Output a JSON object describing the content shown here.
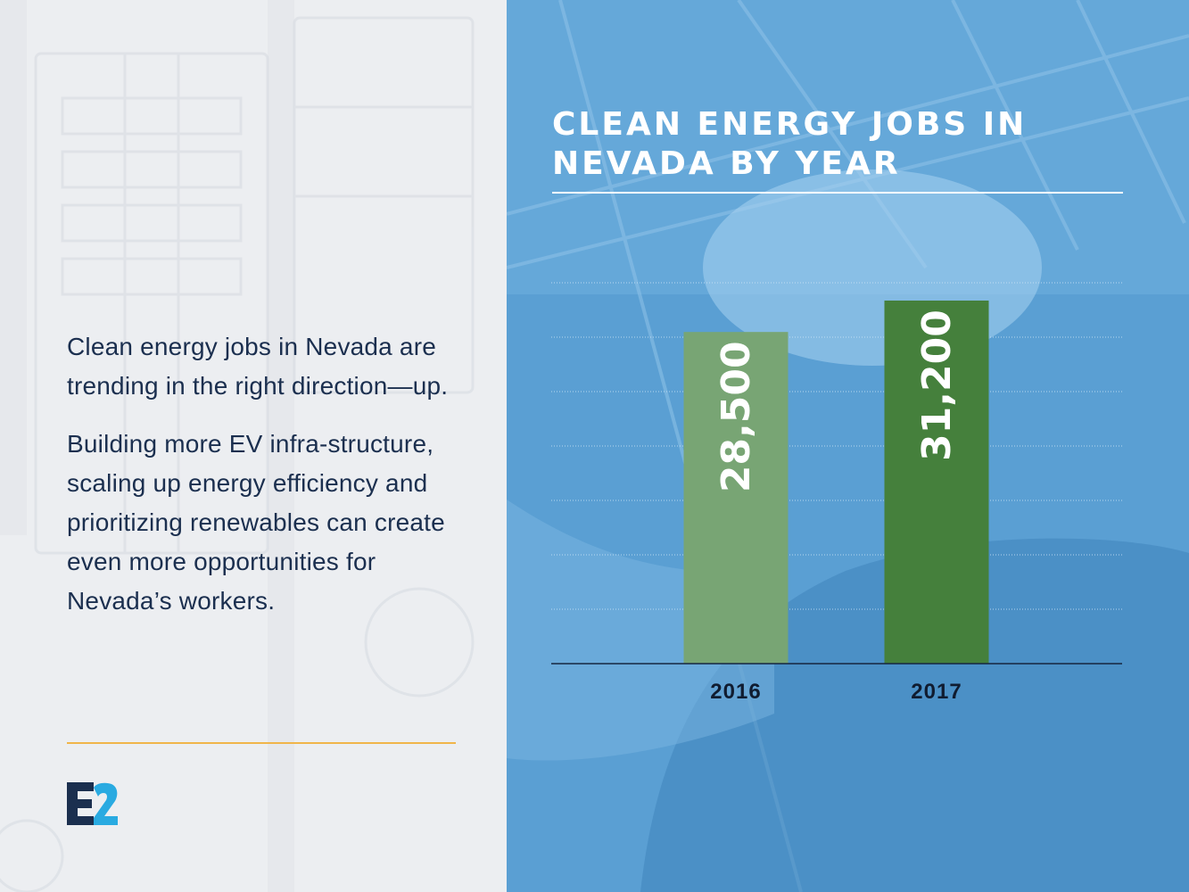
{
  "left": {
    "paragraph_1": "Clean energy jobs in Nevada are trending in the right direction—up.",
    "paragraph_2": "Building more EV infra-structure, scaling up energy efficiency and prioritizing renewables can create even more opportunities for Nevada’s workers.",
    "logo_text": "E2"
  },
  "colors": {
    "text_navy": "#1b2f4f",
    "gold_rule": "#f0b54a",
    "bar_2016": "#78a574",
    "bar_2017": "#45803c",
    "panel_blue": "#5b9fd3",
    "logo_navy": "#1b2f4f",
    "logo_cyan": "#29aae1"
  },
  "chart_data": {
    "type": "bar",
    "title": "CLEAN ENERGY JOBS IN NEVADA BY YEAR",
    "categories": [
      "2016",
      "2017"
    ],
    "values": [
      28500,
      31200
    ],
    "value_labels": [
      "28,500",
      "31,200"
    ],
    "xlabel": "",
    "ylabel": "",
    "ylim": [
      0,
      32500
    ],
    "grid": true,
    "legend": "none"
  }
}
